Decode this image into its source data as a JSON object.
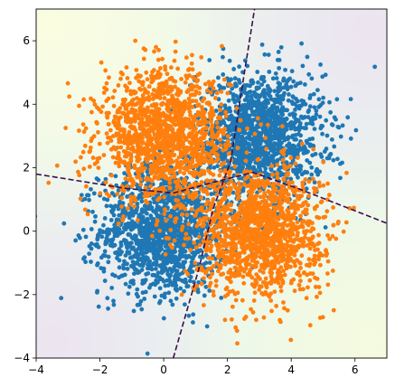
{
  "chart_data": {
    "type": "scatter",
    "title": "",
    "xlabel": "",
    "ylabel": "",
    "xlim": [
      -4,
      7
    ],
    "ylim": [
      -4,
      7
    ],
    "x_ticks": [
      -4,
      -2,
      0,
      2,
      4,
      6
    ],
    "y_ticks": [
      -4,
      -2,
      0,
      2,
      4,
      6
    ],
    "x_tick_labels": [
      "−4",
      "−2",
      "0",
      "2",
      "4",
      "6"
    ],
    "y_tick_labels": [
      "−4",
      "−2",
      "0",
      "2",
      "4",
      "6"
    ],
    "grid": false,
    "legend": "none",
    "series": [
      {
        "color": "#1f77b4",
        "clusters": [
          {
            "center": [
              0,
              0
            ],
            "std": 1.0,
            "count": 1400
          },
          {
            "center": [
              3,
              3
            ],
            "std": 1.0,
            "count": 1400
          }
        ]
      },
      {
        "color": "#ff7f0e",
        "clusters": [
          {
            "center": [
              0,
              3
            ],
            "std": 1.0,
            "count": 1400
          },
          {
            "center": [
              3,
              0
            ],
            "std": 1.0,
            "count": 1400
          }
        ]
      }
    ],
    "decision_boundary": {
      "style": "dashed",
      "color": "#3b0f4f",
      "segments": [
        [
          [
            -4,
            1.8
          ],
          [
            -1.2,
            1.35
          ],
          [
            0.3,
            1.2
          ],
          [
            1.6,
            1.55
          ],
          [
            2.8,
            1.85
          ],
          [
            4.2,
            1.35
          ],
          [
            7,
            0.25
          ]
        ],
        [
          [
            0.3,
            -4
          ],
          [
            1.1,
            -1.2
          ],
          [
            1.55,
            0.7
          ],
          [
            2.1,
            2.2
          ],
          [
            2.5,
            4.8
          ],
          [
            2.85,
            7
          ]
        ]
      ]
    },
    "background": {
      "type": "contour",
      "colors": [
        "#f6fbe4",
        "#e8f6ee",
        "#eef3f4",
        "#ede6ef"
      ]
    }
  }
}
